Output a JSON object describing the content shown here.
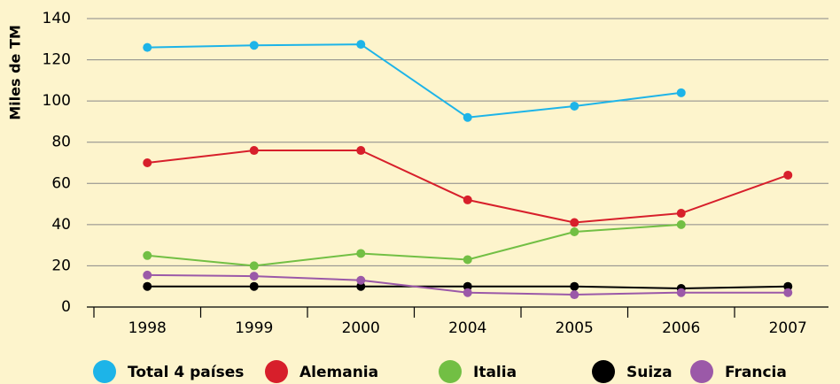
{
  "chart_data": {
    "type": "line",
    "y_label": "Miles de TM",
    "categories": [
      "1998",
      "1999",
      "2000",
      "2004",
      "2005",
      "2006",
      "2007"
    ],
    "series": [
      {
        "name": "Total 4 países",
        "color": "#1db4e8",
        "values": [
          126,
          127,
          127.5,
          92,
          97.5,
          104,
          null
        ]
      },
      {
        "name": "Alemania",
        "color": "#d71f2b",
        "values": [
          70,
          76,
          76,
          52,
          41,
          45.5,
          64
        ]
      },
      {
        "name": "Italia",
        "color": "#72bf44",
        "values": [
          25,
          20,
          26,
          23,
          36.5,
          40,
          null
        ]
      },
      {
        "name": "Suiza",
        "color": "#000000",
        "values": [
          10,
          10,
          10,
          10,
          10,
          9,
          10
        ]
      },
      {
        "name": "Francia",
        "color": "#9b59a8",
        "values": [
          15.5,
          15,
          13,
          7,
          6,
          7,
          7
        ]
      }
    ],
    "ylim": [
      0,
      140
    ],
    "yticks": [
      0,
      20,
      40,
      60,
      80,
      100,
      120,
      140
    ],
    "grid": true
  }
}
